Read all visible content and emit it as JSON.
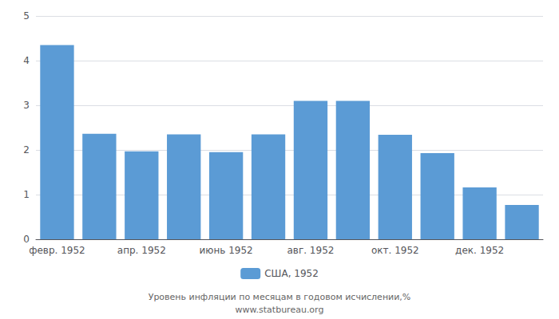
{
  "chart_data": {
    "type": "bar",
    "categories": [
      "февр. 1952",
      null,
      "апр. 1952",
      null,
      "июнь 1952",
      null,
      "авг. 1952",
      null,
      "окт. 1952",
      null,
      "дек. 1952",
      null
    ],
    "series": [
      {
        "name": "США, 1952",
        "color": "#5B9BD5",
        "values": [
          4.35,
          2.36,
          1.97,
          2.35,
          1.95,
          2.35,
          3.1,
          3.1,
          2.34,
          1.93,
          1.16,
          0.77
        ]
      }
    ],
    "ylim": [
      0,
      5
    ],
    "yticks": [
      0,
      1,
      2,
      3,
      4,
      5
    ],
    "grid": true,
    "legend": "bottom",
    "annotations": [
      "Уровень инфляции по месяцам в годовом исчислении,%",
      "www.statbureau.org"
    ]
  }
}
